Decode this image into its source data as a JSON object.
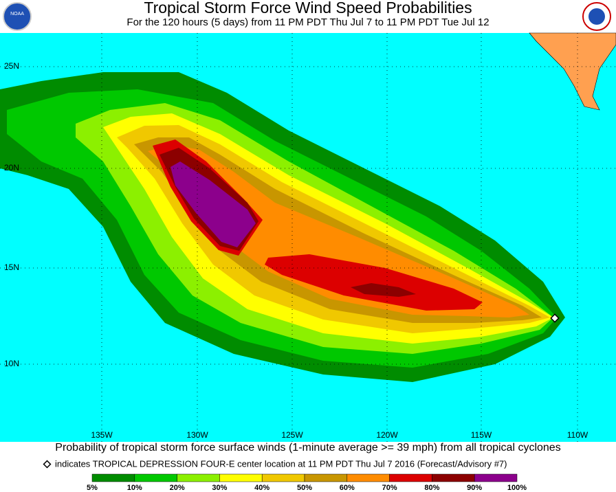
{
  "header": {
    "title": "Tropical Storm Force Wind Speed Probabilities",
    "subtitle": "For the 120 hours (5 days) from 11 PM PDT Thu Jul 7 to 11 PM PDT Tue Jul 12"
  },
  "map": {
    "latitude_labels": [
      "25N",
      "20N",
      "15N",
      "10N"
    ],
    "longitude_labels": [
      "135W",
      "130W",
      "125W",
      "120W",
      "115W",
      "110W"
    ]
  },
  "footer": {
    "caption": "Probability of tropical storm force surface winds (1-minute average >= 39 mph) from all tropical cyclones",
    "note": "indicates TROPICAL DEPRESSION FOUR-E center location at 11 PM PDT Thu Jul 7 2016 (Forecast/Advisory #7)"
  },
  "legend": {
    "ticks": [
      "5%",
      "10%",
      "20%",
      "30%",
      "40%",
      "50%",
      "60%",
      "70%",
      "80%",
      "90%",
      "100%"
    ],
    "colors": [
      "#008c00",
      "#00c800",
      "#8cf000",
      "#ffff00",
      "#f0c800",
      "#c89600",
      "#ff8c00",
      "#dc0000",
      "#8c0000",
      "#8c008c"
    ]
  }
}
